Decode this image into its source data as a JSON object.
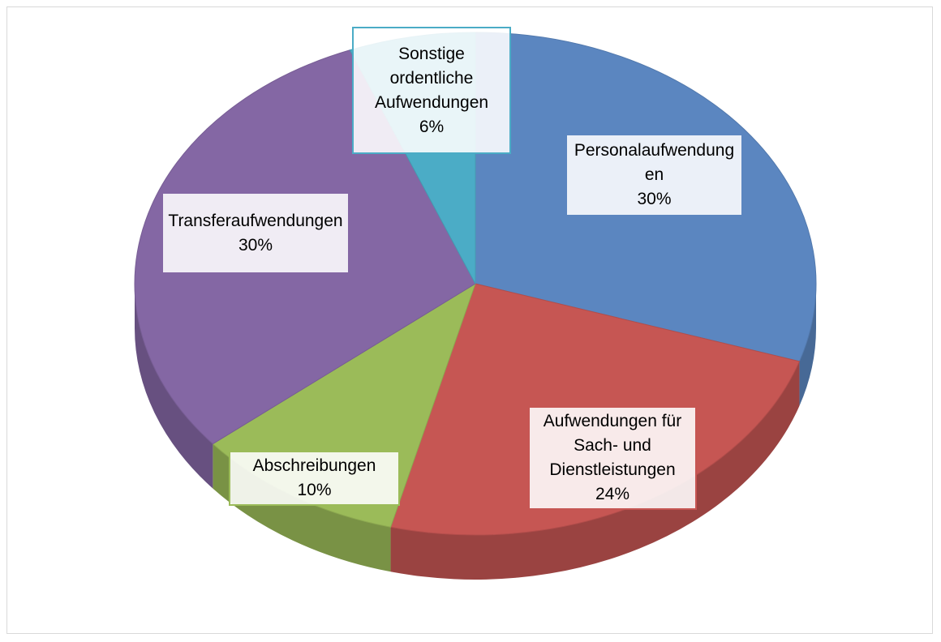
{
  "chart_data": {
    "type": "pie3d",
    "categories": [
      "Personalaufwendungen",
      "Aufwendungen für Sach- und Dienstleistungen",
      "Abschreibungen",
      "Transferaufwendungen",
      "Sonstige ordentliche Aufwendungen"
    ],
    "values": [
      30,
      24,
      10,
      30,
      6
    ],
    "value_labels": [
      "30%",
      "24%",
      "10%",
      "30%",
      "6%"
    ],
    "colors": [
      "#5b86c0",
      "#c65653",
      "#9bbb59",
      "#8467a4",
      "#4bacc6"
    ]
  }
}
